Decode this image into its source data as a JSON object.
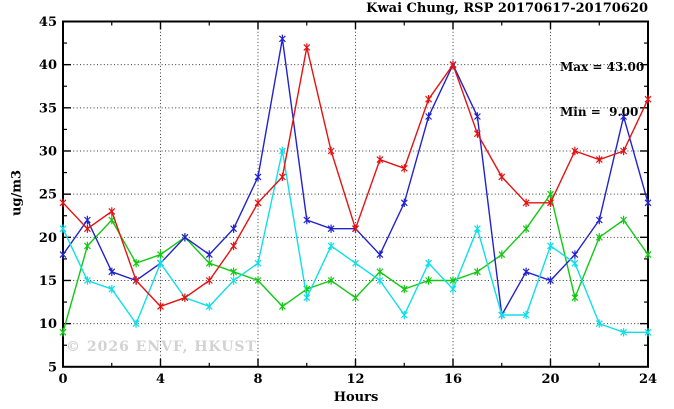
{
  "title": "Kwai Chung, RSP 20170617-20170620",
  "stats": {
    "max_label": "Max = 43.00",
    "min_label": "Min =  9.00"
  },
  "watermark": "© 2026 ENVF, HKUST",
  "colors": {
    "frame": "#000000",
    "grid": "#3a3a3a",
    "series_red": "#e51212",
    "series_blue": "#2222cd",
    "series_green": "#12c912",
    "series_cyan": "#0fdfe8",
    "watermark": "#d2d2d2"
  },
  "chart_data": {
    "type": "line",
    "title": "Kwai Chung, RSP 20170617-20170620",
    "xlabel": "Hours",
    "ylabel": "ug/m3",
    "xlim": [
      0,
      24
    ],
    "ylim": [
      5,
      45
    ],
    "x_major_ticks": [
      0,
      4,
      8,
      12,
      16,
      20,
      24
    ],
    "x_minor_ticks": [
      2,
      6,
      10,
      14,
      18,
      22
    ],
    "y_major_ticks": [
      5,
      10,
      15,
      20,
      25,
      30,
      35,
      40,
      45
    ],
    "y_minor_ticks": [
      7.5,
      12.5,
      17.5,
      22.5,
      27.5,
      32.5,
      37.5,
      42.5
    ],
    "grid": "dotted lines at major ticks, frame on all four sides, ticks mirrored",
    "legend_position": "none",
    "marker": "asterisk",
    "annotations": {
      "max": 43.0,
      "min": 9.0
    },
    "x": [
      0,
      1,
      2,
      3,
      4,
      5,
      6,
      7,
      8,
      9,
      10,
      11,
      12,
      13,
      14,
      15,
      16,
      17,
      18,
      19,
      20,
      21,
      22,
      23,
      24
    ],
    "series": [
      {
        "name": "series-red",
        "color": "#e51212",
        "values": [
          24,
          21,
          23,
          15,
          12,
          13,
          15,
          19,
          24,
          27,
          42,
          30,
          21,
          29,
          28,
          36,
          40,
          32,
          27,
          24,
          24,
          30,
          29,
          30,
          36
        ]
      },
      {
        "name": "series-blue",
        "color": "#2222cd",
        "values": [
          18,
          22,
          16,
          15,
          17,
          20,
          18,
          21,
          27,
          43,
          22,
          21,
          21,
          18,
          24,
          34,
          40,
          34,
          11,
          16,
          15,
          18,
          22,
          34,
          24
        ]
      },
      {
        "name": "series-green",
        "color": "#12c912",
        "values": [
          9,
          19,
          22,
          17,
          18,
          20,
          17,
          16,
          15,
          12,
          14,
          15,
          13,
          16,
          14,
          15,
          15,
          16,
          18,
          21,
          25,
          13,
          20,
          22,
          18
        ]
      },
      {
        "name": "series-cyan",
        "color": "#0fdfe8",
        "values": [
          21,
          15,
          14,
          10,
          17,
          13,
          12,
          15,
          17,
          30,
          13,
          19,
          17,
          15,
          11,
          17,
          14,
          21,
          11,
          11,
          19,
          17,
          10,
          9,
          9
        ]
      }
    ]
  }
}
